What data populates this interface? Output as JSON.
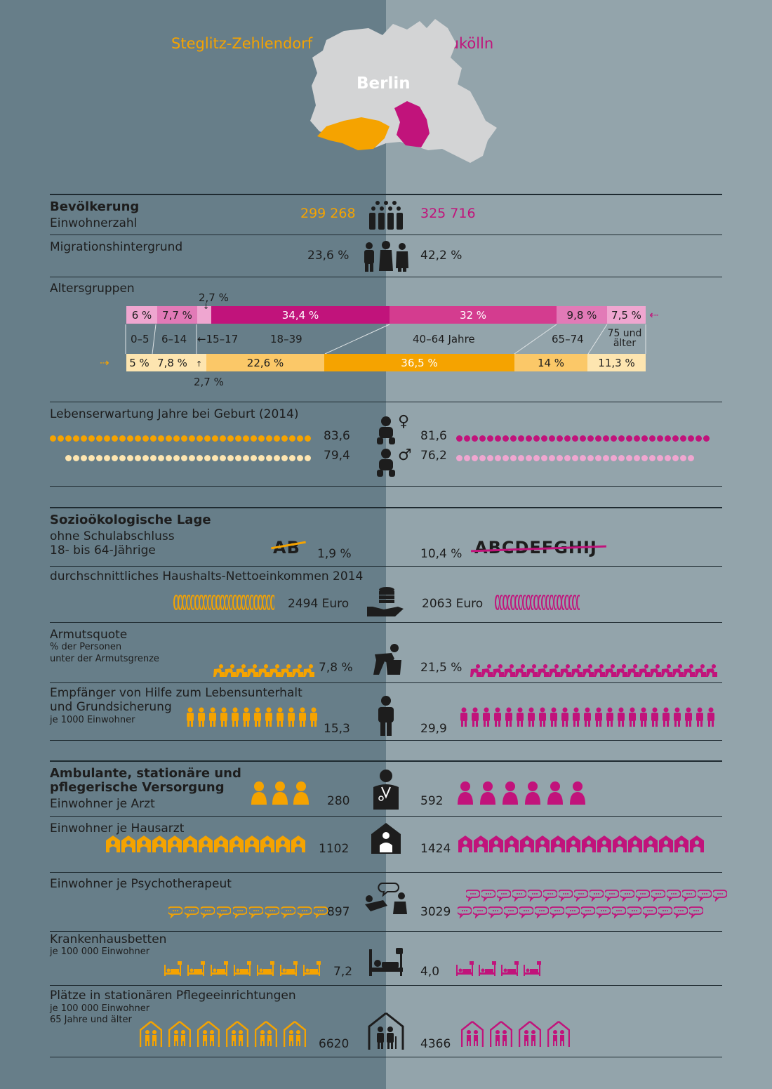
{
  "colors": {
    "left_bg": "#677e89",
    "right_bg": "#93a4ab",
    "orange": "#f5a300",
    "orange_light": "#fbc868",
    "orange_pale": "#fde5b0",
    "magenta": "#c1137b",
    "magenta_mid": "#d43c8f",
    "magenta_pale": "#efa6d0",
    "dark": "#1d1d1d"
  },
  "header": {
    "left_district": "Steglitz-Zehlendorf",
    "right_district": "Neukölln",
    "city": "Berlin"
  },
  "bevoelkerung": {
    "title": "Bevölkerung",
    "einwohner_label": "Einwohnerzahl",
    "einwohner_left": "299 268",
    "einwohner_right": "325 716",
    "migration_label": "Migrationshintergrund",
    "migration_left": "23,6 %",
    "migration_right": "42,2 %",
    "alters_label": "Altersgruppen",
    "age_groups": [
      {
        "label": "0–5"
      },
      {
        "label": "6–14"
      },
      {
        "label": "←15–17"
      },
      {
        "label": "18–39"
      },
      {
        "label": "40–64 Jahre"
      },
      {
        "label": "65–74"
      },
      {
        "label": "75 und älter"
      }
    ],
    "neukoelln_age": [
      {
        "pct": 6,
        "label": "6 %"
      },
      {
        "pct": 7.7,
        "label": "7,7 %"
      },
      {
        "pct": 2.7,
        "label": "2,7 %"
      },
      {
        "pct": 34.4,
        "label": "34,4 %"
      },
      {
        "pct": 32,
        "label": "32 %"
      },
      {
        "pct": 9.8,
        "label": "9,8 %"
      },
      {
        "pct": 7.5,
        "label": "7,5 %"
      }
    ],
    "steglitz_age": [
      {
        "pct": 5,
        "label": "5 %"
      },
      {
        "pct": 7.8,
        "label": "7,8 %"
      },
      {
        "pct": 2.7,
        "label": "2,7 %"
      },
      {
        "pct": 22.6,
        "label": "22,6 %"
      },
      {
        "pct": 36.5,
        "label": "36,5 %"
      },
      {
        "pct": 14,
        "label": "14 %"
      },
      {
        "pct": 11.3,
        "label": "11,3 %"
      }
    ],
    "lebens_label": "Lebenserwartung Jahre bei Geburt (2014)",
    "life_female_left": "83,6",
    "life_female_right": "81,6",
    "life_male_left": "79,4",
    "life_male_right": "76,2",
    "female_symbol": "♀",
    "male_symbol": "♂"
  },
  "sozio": {
    "title": "Sozioökologische Lage",
    "schul_label_1": "ohne Schulabschluss",
    "schul_label_2": "18- bis 64-Jährige",
    "schul_left": "1,9 %",
    "schul_right": "10,4 %",
    "schul_left_letters": "AB",
    "schul_right_letters": "ABCDEFGHIJ",
    "einkommen_label": "durchschnittliches Haushalts-Nettoeinkommen 2014",
    "einkommen_left": "2494 Euro",
    "einkommen_right": "2063 Euro",
    "armut_label": "Armutsquote",
    "armut_sub_1": "% der Personen",
    "armut_sub_2": "unter der Armutsgrenze",
    "armut_left": "7,8 %",
    "armut_right": "21,5 %",
    "hilfe_label_1": "Empfänger von Hilfe zum Lebensunterhalt",
    "hilfe_label_2": "und Grundsicherung",
    "hilfe_sub": "je 1000 Einwohner",
    "hilfe_left": "15,3",
    "hilfe_right": "29,9"
  },
  "versorgung": {
    "title_1": "Ambulante, stationäre und",
    "title_2": "pflegerische Versorgung",
    "arzt_label": "Einwohner je Arzt",
    "arzt_left": "280",
    "arzt_right": "592",
    "hausarzt_label": "Einwohner je Hausarzt",
    "hausarzt_left": "1102",
    "hausarzt_right": "1424",
    "psycho_label": "Einwohner je Psychotherapeut",
    "psycho_left": "897",
    "psycho_right": "3029",
    "kh_label": "Krankenhausbetten",
    "kh_sub": "je 100 000 Einwohner",
    "kh_left": "7,2",
    "kh_right": "4,0",
    "pflege_label": "Plätze in stationären Pflegeeinrichtungen",
    "pflege_sub_1": "je 100 000 Einwohner",
    "pflege_sub_2": "65 Jahre und älter",
    "pflege_left": "6620",
    "pflege_right": "4366"
  }
}
